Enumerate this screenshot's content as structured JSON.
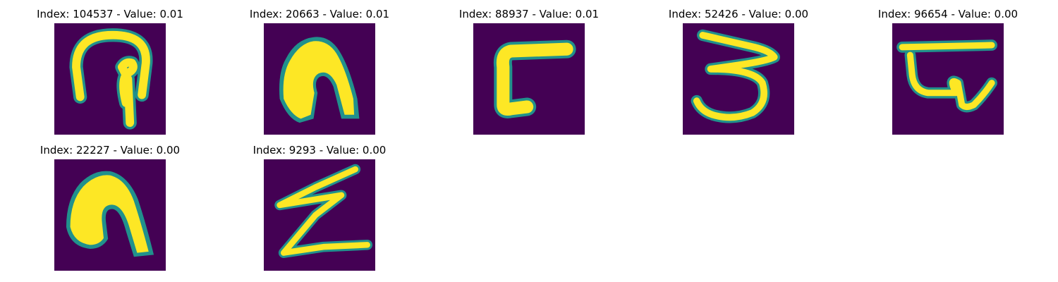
{
  "figure": {
    "background": "#ffffff",
    "colormap": "viridis",
    "colors": {
      "low": "#440154",
      "mid": "#21918c",
      "high": "#fde725"
    }
  },
  "chart_data": {
    "type": "heatmap",
    "grid": false,
    "axes": "off",
    "layout": "2 rows x 5 columns",
    "panels": [
      {
        "title": "Index: 104537 - Value: 0.01",
        "index": 104537,
        "value": 0.01
      },
      {
        "title": "Index: 20663 - Value: 0.01",
        "index": 20663,
        "value": 0.01
      },
      {
        "title": "Index: 88937 - Value: 0.01",
        "index": 88937,
        "value": 0.01
      },
      {
        "title": "Index: 52426 - Value: 0.00",
        "index": 52426,
        "value": 0.0
      },
      {
        "title": "Index: 96654 - Value: 0.00",
        "index": 96654,
        "value": 0.0
      },
      {
        "title": "Index: 22227 - Value: 0.00",
        "index": 22227,
        "value": 0.0
      },
      {
        "title": "Index: 9293 - Value: 0.00",
        "index": 9293,
        "value": 0.0
      }
    ]
  }
}
